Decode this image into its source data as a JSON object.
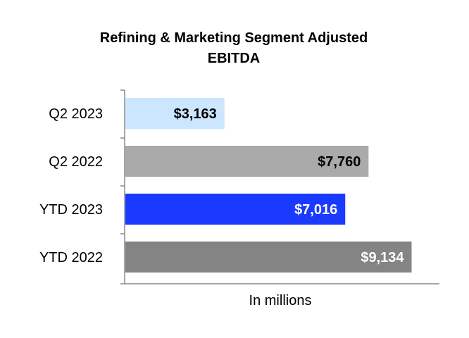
{
  "chart_data": {
    "type": "bar",
    "orientation": "horizontal",
    "title_lines": [
      "Refining & Marketing Segment Adjusted",
      "EBITDA"
    ],
    "categories": [
      "Q2 2023",
      "Q2 2022",
      "YTD 2023",
      "YTD 2022"
    ],
    "values": [
      3163,
      7760,
      7016,
      9134
    ],
    "value_labels": [
      "$3,163",
      "$7,760",
      "$7,016",
      "$9,134"
    ],
    "xlabel": "In millions",
    "ylabel": "",
    "xlim": [
      0,
      10000
    ],
    "grid": false,
    "legend": "none",
    "colors": [
      "#cce6ff",
      "#aaaaaa",
      "#1a3bff",
      "#848484"
    ],
    "label_colors": [
      "#000000",
      "#000000",
      "#ffffff",
      "#ffffff"
    ]
  }
}
